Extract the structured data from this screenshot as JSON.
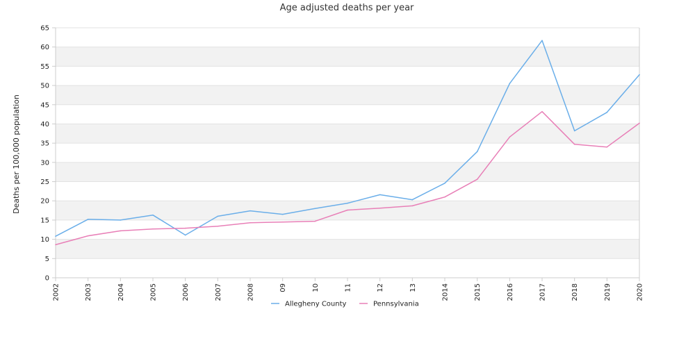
{
  "chart_data": {
    "type": "line",
    "title": "Age adjusted deaths per year",
    "xlabel": "",
    "ylabel": "Deaths per 100,000 population",
    "categories": [
      "2002",
      "2003",
      "2004",
      "2005",
      "2006",
      "2007",
      "2008",
      "09",
      "10",
      "11",
      "12",
      "13",
      "2014",
      "2015",
      "2016",
      "2017",
      "2018",
      "2019",
      "2020"
    ],
    "ylim": [
      0,
      65
    ],
    "yticks": [
      0,
      5,
      10,
      15,
      20,
      25,
      30,
      35,
      40,
      45,
      50,
      55,
      60,
      65
    ],
    "grid": "alternating horizontal bands",
    "legend_position": "bottom",
    "series": [
      {
        "name": "Allegheny County",
        "color": "#6aaee9",
        "values": [
          10.8,
          15.2,
          15.0,
          16.3,
          11.1,
          16.0,
          17.4,
          16.5,
          18.0,
          19.4,
          21.6,
          20.3,
          24.6,
          32.8,
          50.5,
          61.7,
          38.2,
          43.0,
          52.8
        ]
      },
      {
        "name": "Pennsylvania",
        "color": "#e87fb7",
        "values": [
          8.6,
          10.9,
          12.2,
          12.7,
          12.9,
          13.4,
          14.3,
          14.5,
          14.7,
          17.6,
          18.1,
          18.7,
          21.0,
          25.6,
          36.6,
          43.2,
          34.7,
          34.0,
          40.2
        ]
      }
    ]
  },
  "colors": {
    "band": "#f2f2f2",
    "grid": "#e2e2e2",
    "axis": "#cccccc"
  }
}
